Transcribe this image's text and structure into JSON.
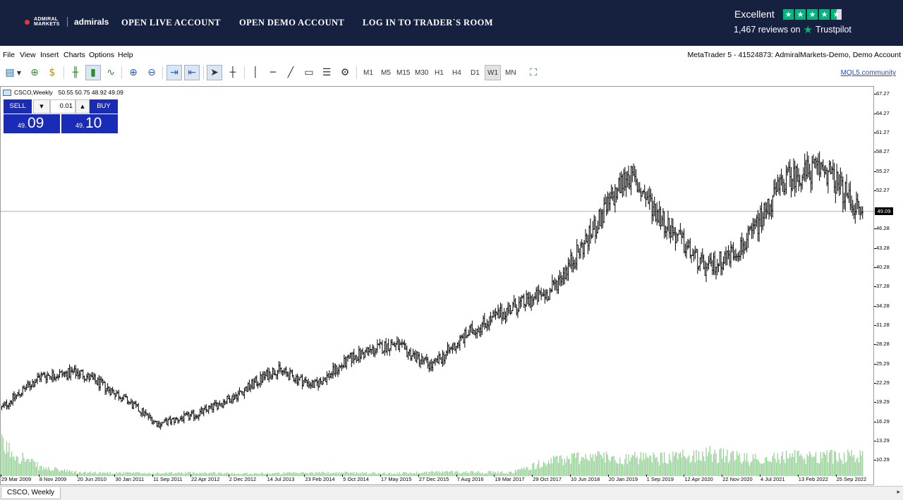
{
  "banner": {
    "logo_mark": "ADMIRAL MARKETS",
    "logo_word": "admirals",
    "nav": [
      "OPEN LIVE ACCOUNT",
      "OPEN DEMO ACCOUNT",
      "LOG IN TO TRADER`S ROOM"
    ],
    "trustpilot_rating": "Excellent",
    "trustpilot_reviews": "1,467 reviews on",
    "trustpilot_brand": "Trustpilot",
    "trustpilot_color": "#00b67a"
  },
  "menu": {
    "items": [
      "File",
      "View",
      "Insert",
      "Charts",
      "Options",
      "Help"
    ],
    "window_title": "MetaTrader 5 - 41524873: AdmiralMarkets-Demo, Demo Account"
  },
  "toolbar": {
    "icons": [
      "new-chart-icon",
      "dropdown-arrow-icon",
      "new-order-icon",
      "market-watch-icon",
      "bar-chart-icon",
      "candlestick-icon",
      "line-chart-icon",
      "zoom-in-icon",
      "zoom-out-icon",
      "auto-scroll-icon",
      "chart-shift-icon",
      "cursor-icon",
      "crosshair-icon",
      "vertical-line-icon",
      "horizontal-line-icon",
      "trendline-icon",
      "text-label-icon",
      "fibonacci-icon",
      "elliott-wave-icon",
      "fullscreen-icon"
    ],
    "timeframes": [
      "M1",
      "M5",
      "M15",
      "M30",
      "H1",
      "H4",
      "D1",
      "W1",
      "MN"
    ],
    "active_timeframe": "W1",
    "mql5_link": "MQL5.community"
  },
  "chart": {
    "symbol_header": "CSCO,Weekly",
    "ohlc": "50.55 50.75 48.92 49.09",
    "trade_panel": {
      "sell_label": "SELL",
      "buy_label": "BUY",
      "lot": "0.01",
      "sell_price_small": "49.",
      "sell_price_big": "09",
      "buy_price_small": "49.",
      "buy_price_big": "10"
    },
    "current_price": "49.09",
    "tab_label": "CSCO, Weekly"
  },
  "chart_data": {
    "type": "line",
    "symbol": "CSCO",
    "timeframe": "Weekly",
    "current_price": 49.09,
    "ylim": [
      7.9,
      68.5
    ],
    "y_ticks": [
      "67.27",
      "64.27",
      "61.27",
      "58.27",
      "55.27",
      "52.27",
      "46.28",
      "43.28",
      "40.28",
      "37.28",
      "34.28",
      "31.28",
      "28.28",
      "25.29",
      "22.29",
      "19.29",
      "16.29",
      "13.29",
      "10.29"
    ],
    "x_ticks": [
      "29 Mar 2009",
      "8 Nov 2009",
      "20 Jun 2010",
      "30 Jan 2011",
      "11 Sep 2011",
      "22 Apr 2012",
      "2 Dec 2012",
      "14 Jul 2013",
      "23 Feb 2014",
      "5 Oct 2014",
      "17 May 2015",
      "27 Dec 2015",
      "7 Aug 2016",
      "19 Mar 2017",
      "29 Oct 2017",
      "10 Jun 2018",
      "20 Jan 2019",
      "1 Sep 2019",
      "12 Apr 2020",
      "22 Nov 2020",
      "4 Jul 2021",
      "13 Feb 2022",
      "25 Sep 2022"
    ],
    "series": [
      {
        "price_color": "#000000",
        "volume_color": "#8fce8f",
        "x": [
          "29 Mar 2009",
          "8 Nov 2009",
          "20 Jun 2010",
          "30 Jan 2011",
          "11 Sep 2011",
          "22 Apr 2012",
          "2 Dec 2012",
          "14 Jul 2013",
          "23 Feb 2014",
          "5 Oct 2014",
          "17 May 2015",
          "27 Dec 2015",
          "7 Aug 2016",
          "19 Mar 2017",
          "29 Oct 2017",
          "10 Jun 2018",
          "20 Jan 2019",
          "1 Sep 2019",
          "12 Apr 2020",
          "22 Nov 2020",
          "4 Jul 2021",
          "13 Feb 2022",
          "25 Sep 2022"
        ],
        "close": [
          18.5,
          23.5,
          24.0,
          20.5,
          16.0,
          17.5,
          20.5,
          24.5,
          22.0,
          26.5,
          28.5,
          25.0,
          30.5,
          34.0,
          36.5,
          45.0,
          55.0,
          47.0,
          40.0,
          44.0,
          54.0,
          56.0,
          48.5
        ],
        "volume_relative": [
          0.45,
          0.12,
          0.05,
          0.05,
          0.04,
          0.05,
          0.04,
          0.04,
          0.05,
          0.05,
          0.04,
          0.06,
          0.06,
          0.05,
          0.22,
          0.3,
          0.26,
          0.26,
          0.34,
          0.25,
          0.28,
          0.3,
          0.28
        ]
      }
    ]
  }
}
